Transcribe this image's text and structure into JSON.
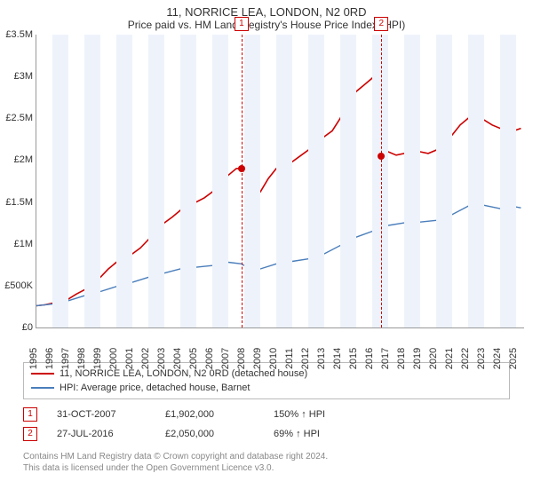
{
  "title": "11, NORRICE LEA, LONDON, N2 0RD",
  "subtitle": "Price paid vs. HM Land Registry's House Price Index (HPI)",
  "chart": {
    "type": "line",
    "y": {
      "min": 0,
      "max": 3500000,
      "step": 500000,
      "ticks": [
        {
          "v": 0,
          "label": "£0"
        },
        {
          "v": 500000,
          "label": "£500K"
        },
        {
          "v": 1000000,
          "label": "£1M"
        },
        {
          "v": 1500000,
          "label": "£1.5M"
        },
        {
          "v": 2000000,
          "label": "£2M"
        },
        {
          "v": 2500000,
          "label": "£2.5M"
        },
        {
          "v": 3000000,
          "label": "£3M"
        },
        {
          "v": 3500000,
          "label": "£3.5M"
        }
      ]
    },
    "x": {
      "min": 1995,
      "max": 2025.5,
      "years": [
        1995,
        1996,
        1997,
        1998,
        1999,
        2000,
        2001,
        2002,
        2003,
        2004,
        2005,
        2006,
        2007,
        2008,
        2009,
        2010,
        2011,
        2012,
        2013,
        2014,
        2015,
        2016,
        2017,
        2018,
        2019,
        2020,
        2021,
        2022,
        2023,
        2024,
        2025
      ]
    },
    "band_color": "#eef3fb",
    "grid_color": "#eeeeee",
    "background": "#ffffff",
    "series": [
      {
        "name": "property",
        "color": "#cc0000",
        "width": 1.6,
        "points": [
          [
            1995,
            260000
          ],
          [
            1995.5,
            270000
          ],
          [
            1996,
            290000
          ],
          [
            1996.5,
            300000
          ],
          [
            1997,
            340000
          ],
          [
            1997.5,
            400000
          ],
          [
            1998,
            450000
          ],
          [
            1998.5,
            520000
          ],
          [
            1999,
            600000
          ],
          [
            1999.5,
            700000
          ],
          [
            2000,
            780000
          ],
          [
            2000.5,
            820000
          ],
          [
            2001,
            880000
          ],
          [
            2001.5,
            950000
          ],
          [
            2002,
            1050000
          ],
          [
            2002.5,
            1150000
          ],
          [
            2003,
            1250000
          ],
          [
            2003.5,
            1320000
          ],
          [
            2004,
            1400000
          ],
          [
            2004.5,
            1480000
          ],
          [
            2005,
            1500000
          ],
          [
            2005.5,
            1550000
          ],
          [
            2006,
            1620000
          ],
          [
            2006.5,
            1720000
          ],
          [
            2007,
            1820000
          ],
          [
            2007.5,
            1900000
          ],
          [
            2007.83,
            1902000
          ],
          [
            2008,
            1880000
          ],
          [
            2008.3,
            1680000
          ],
          [
            2008.6,
            1560000
          ],
          [
            2009,
            1620000
          ],
          [
            2009.5,
            1780000
          ],
          [
            2010,
            1900000
          ],
          [
            2010.5,
            1960000
          ],
          [
            2011,
            1980000
          ],
          [
            2011.5,
            2050000
          ],
          [
            2012,
            2120000
          ],
          [
            2012.5,
            2200000
          ],
          [
            2013,
            2280000
          ],
          [
            2013.5,
            2350000
          ],
          [
            2014,
            2500000
          ],
          [
            2014.5,
            2700000
          ],
          [
            2015,
            2820000
          ],
          [
            2015.5,
            2900000
          ],
          [
            2016,
            2980000
          ],
          [
            2016.3,
            3050000
          ],
          [
            2016.5,
            3100000
          ],
          [
            2016.57,
            2050000
          ],
          [
            2017,
            2100000
          ],
          [
            2017.5,
            2060000
          ],
          [
            2018,
            2080000
          ],
          [
            2018.5,
            2150000
          ],
          [
            2019,
            2100000
          ],
          [
            2019.5,
            2080000
          ],
          [
            2020,
            2120000
          ],
          [
            2020.5,
            2180000
          ],
          [
            2021,
            2300000
          ],
          [
            2021.5,
            2420000
          ],
          [
            2022,
            2500000
          ],
          [
            2022.5,
            2520000
          ],
          [
            2023,
            2480000
          ],
          [
            2023.5,
            2420000
          ],
          [
            2024,
            2380000
          ],
          [
            2024.5,
            2400000
          ],
          [
            2025,
            2360000
          ],
          [
            2025.3,
            2380000
          ]
        ]
      },
      {
        "name": "hpi",
        "color": "#4a7ebb",
        "width": 1.4,
        "points": [
          [
            1995,
            260000
          ],
          [
            1996,
            280000
          ],
          [
            1997,
            320000
          ],
          [
            1998,
            380000
          ],
          [
            1999,
            430000
          ],
          [
            2000,
            490000
          ],
          [
            2001,
            540000
          ],
          [
            2002,
            600000
          ],
          [
            2003,
            650000
          ],
          [
            2004,
            700000
          ],
          [
            2005,
            720000
          ],
          [
            2006,
            740000
          ],
          [
            2007,
            780000
          ],
          [
            2007.83,
            760000
          ],
          [
            2008,
            740000
          ],
          [
            2008.5,
            680000
          ],
          [
            2009,
            700000
          ],
          [
            2010,
            760000
          ],
          [
            2011,
            790000
          ],
          [
            2012,
            820000
          ],
          [
            2013,
            880000
          ],
          [
            2014,
            980000
          ],
          [
            2015,
            1080000
          ],
          [
            2016,
            1150000
          ],
          [
            2016.57,
            1210000
          ],
          [
            2017,
            1220000
          ],
          [
            2018,
            1250000
          ],
          [
            2019,
            1260000
          ],
          [
            2020,
            1280000
          ],
          [
            2021,
            1350000
          ],
          [
            2022,
            1450000
          ],
          [
            2022.5,
            1500000
          ],
          [
            2023,
            1460000
          ],
          [
            2024,
            1420000
          ],
          [
            2025,
            1440000
          ],
          [
            2025.3,
            1430000
          ]
        ]
      }
    ],
    "sale_markers": [
      {
        "idx": "1",
        "x": 2007.83,
        "y": 1902000
      },
      {
        "idx": "2",
        "x": 2016.57,
        "y": 2050000
      }
    ],
    "marker_line_color": "#cc0000",
    "marker_dot_color": "#cc0000"
  },
  "legend": {
    "items": [
      {
        "color": "#cc0000",
        "label": "11, NORRICE LEA, LONDON, N2 0RD (detached house)"
      },
      {
        "color": "#4a7ebb",
        "label": "HPI: Average price, detached house, Barnet"
      }
    ]
  },
  "sales": [
    {
      "idx": "1",
      "date": "31-OCT-2007",
      "price": "£1,902,000",
      "pct": "150% ↑ HPI"
    },
    {
      "idx": "2",
      "date": "27-JUL-2016",
      "price": "£2,050,000",
      "pct": "69% ↑ HPI"
    }
  ],
  "footer": {
    "l1": "Contains HM Land Registry data © Crown copyright and database right 2024.",
    "l2": "This data is licensed under the Open Government Licence v3.0."
  }
}
